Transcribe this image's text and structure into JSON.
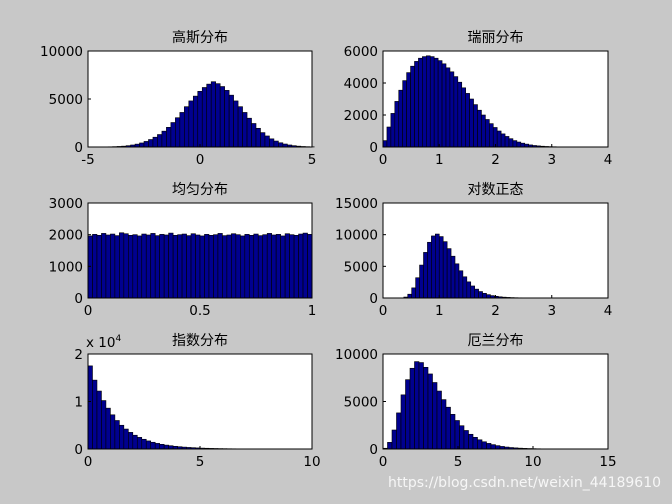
{
  "figure": {
    "background": "#c8c8c8",
    "axes_bg": "#ffffff",
    "bar_fill": "#00008f",
    "bar_edge": "#000000"
  },
  "watermark": "https://blog.csdn.net/weixin_44189610",
  "chart_data": [
    {
      "type": "bar",
      "title": "高斯分布",
      "xlim": [
        -5,
        5
      ],
      "ylim": [
        0,
        10000
      ],
      "xticks": [
        "-5",
        "0",
        "5"
      ],
      "yticks": [
        "0",
        "5000",
        "10000"
      ],
      "y_multiplier": "",
      "bin_start": -4.5,
      "bin_width": 0.2,
      "values": [
        10,
        15,
        25,
        40,
        60,
        90,
        140,
        210,
        300,
        420,
        580,
        780,
        1020,
        1300,
        1650,
        2050,
        2550,
        3050,
        3600,
        4200,
        4800,
        5300,
        5800,
        6200,
        6550,
        6800,
        6600,
        6300,
        5900,
        5400,
        4800,
        4200,
        3600,
        3000,
        2450,
        1950,
        1500,
        1150,
        850,
        620,
        440,
        310,
        210,
        140,
        90,
        55,
        35,
        20
      ]
    },
    {
      "type": "bar",
      "title": "瑞丽分布",
      "xlim": [
        0,
        4
      ],
      "ylim": [
        0,
        6000
      ],
      "xticks": [
        "0",
        "1",
        "2",
        "3",
        "4"
      ],
      "yticks": [
        "0",
        "2000",
        "4000",
        "6000"
      ],
      "y_multiplier": "",
      "bin_start": 0,
      "bin_width": 0.07,
      "values": [
        400,
        1250,
        2100,
        2850,
        3550,
        4150,
        4650,
        5050,
        5350,
        5550,
        5650,
        5700,
        5650,
        5550,
        5400,
        5200,
        4950,
        4700,
        4400,
        4050,
        3700,
        3350,
        3000,
        2650,
        2300,
        2000,
        1720,
        1460,
        1220,
        1000,
        820,
        660,
        520,
        400,
        310,
        240,
        180,
        130,
        95,
        70,
        50,
        35,
        25,
        18,
        12,
        8,
        5
      ]
    },
    {
      "type": "bar",
      "title": "均匀分布",
      "xlim": [
        0,
        1
      ],
      "ylim": [
        0,
        3000
      ],
      "xticks": [
        "0",
        "0.5",
        "1"
      ],
      "yticks": [
        "0",
        "1000",
        "2000",
        "3000"
      ],
      "y_multiplier": "",
      "bin_start": 0,
      "bin_width": 0.02,
      "values": [
        1960,
        2010,
        1980,
        2040,
        1990,
        2020,
        1970,
        2060,
        2030,
        1980,
        2000,
        1960,
        2020,
        1990,
        2040,
        1970,
        2010,
        1990,
        2050,
        1980,
        2000,
        2020,
        1970,
        2030,
        1990,
        1960,
        2010,
        1980,
        2000,
        2040,
        1970,
        1990,
        2030,
        2000,
        1960,
        2010,
        1980,
        2020,
        1970,
        2000,
        2040,
        1990,
        2010,
        1960,
        2030,
        2000,
        1980,
        2020,
        2050,
        2010
      ]
    },
    {
      "type": "bar",
      "title": "对数正态",
      "xlim": [
        0,
        4
      ],
      "ylim": [
        0,
        15000
      ],
      "xticks": [
        "0",
        "1",
        "2",
        "3",
        "4"
      ],
      "yticks": [
        "0",
        "5000",
        "10000",
        "15000"
      ],
      "y_multiplier": "",
      "bin_start": 0.3,
      "bin_width": 0.07,
      "values": [
        30,
        150,
        600,
        1600,
        3200,
        5200,
        7200,
        8800,
        9800,
        10100,
        9700,
        8900,
        7800,
        6600,
        5400,
        4300,
        3350,
        2550,
        1900,
        1400,
        1020,
        740,
        530,
        380,
        270,
        190,
        135,
        95,
        68,
        48,
        34,
        24,
        17,
        12,
        9,
        7,
        5,
        4,
        3,
        2,
        2,
        1,
        1,
        1,
        0,
        1
      ]
    },
    {
      "type": "bar",
      "title": "指数分布",
      "xlim": [
        0,
        10
      ],
      "ylim": [
        0,
        2
      ],
      "xticks": [
        "0",
        "5",
        "10"
      ],
      "yticks": [
        "0",
        "1",
        "2"
      ],
      "y_multiplier": "x 10",
      "y_multiplier_exp": "4",
      "bin_start": 0,
      "bin_width": 0.2,
      "values": [
        1.75,
        1.45,
        1.22,
        1.02,
        0.86,
        0.72,
        0.6,
        0.5,
        0.42,
        0.35,
        0.29,
        0.245,
        0.205,
        0.17,
        0.142,
        0.118,
        0.099,
        0.082,
        0.069,
        0.057,
        0.048,
        0.04,
        0.033,
        0.028,
        0.023,
        0.019,
        0.016,
        0.013,
        0.011,
        0.009,
        0.0075,
        0.006,
        0.005,
        0.0042,
        0.0035,
        0.003,
        0.0025,
        0.002,
        0.0017,
        0.0014,
        0.0012,
        0.001,
        0.0008,
        0.0007,
        0.0006,
        0.0005,
        0.0004,
        0.0003,
        0.0003,
        0.0002
      ]
    },
    {
      "type": "bar",
      "title": "厄兰分布",
      "xlim": [
        0,
        15
      ],
      "ylim": [
        0,
        10000
      ],
      "xticks": [
        "0",
        "5",
        "10",
        "15"
      ],
      "yticks": [
        "0",
        "5000",
        "10000"
      ],
      "y_multiplier": "",
      "bin_start": 0,
      "bin_width": 0.3,
      "values": [
        80,
        700,
        2000,
        3800,
        5700,
        7300,
        8500,
        9200,
        9100,
        8600,
        7900,
        7000,
        6100,
        5200,
        4400,
        3650,
        3000,
        2450,
        1950,
        1550,
        1230,
        970,
        760,
        590,
        460,
        355,
        270,
        205,
        155,
        118,
        90,
        68,
        51,
        38,
        28,
        21,
        16,
        12,
        9,
        7
      ]
    }
  ]
}
